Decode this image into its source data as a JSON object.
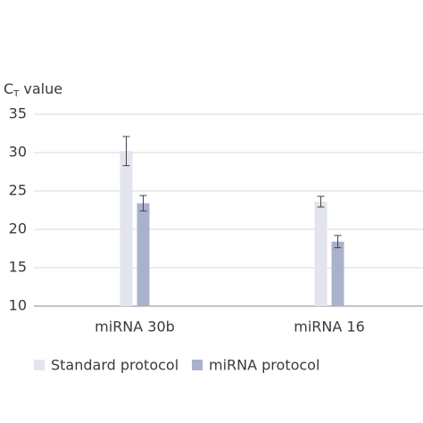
{
  "chart_data": {
    "type": "bar",
    "ylabel": [
      "C",
      "T",
      " value"
    ],
    "categories": [
      "miRNA 30b",
      "miRNA 16"
    ],
    "series": [
      {
        "name": "Standard protocol",
        "color": "#e2e4f0",
        "values": [
          30.2,
          23.6
        ],
        "errors": [
          1.9,
          0.7
        ]
      },
      {
        "name": "miRNA protocol",
        "color": "#a9b2cd",
        "values": [
          23.4,
          18.4
        ],
        "errors": [
          1.0,
          0.8
        ]
      }
    ],
    "ylim": [
      10,
      35
    ],
    "yticks": [
      10,
      15,
      20,
      25,
      30,
      35
    ],
    "grid": true
  }
}
